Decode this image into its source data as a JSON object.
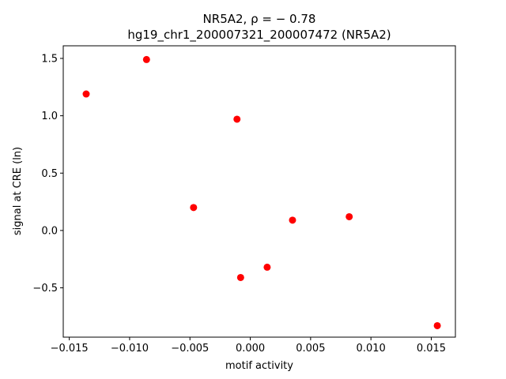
{
  "chart_data": {
    "type": "scatter",
    "title_line1": "NR5A2, ρ = − 0.78",
    "title_line2": "hg19_chr1_200007321_200007472 (NR5A2)",
    "xlabel": "motif activity",
    "ylabel": "signal at CRE (ln)",
    "xlim": [
      -0.0155,
      0.017
    ],
    "ylim": [
      -0.93,
      1.61
    ],
    "xticks": [
      -0.015,
      -0.01,
      -0.005,
      0.0,
      0.005,
      0.01,
      0.015
    ],
    "xtick_labels": [
      "−0.015",
      "−0.010",
      "−0.005",
      "0.000",
      "0.005",
      "0.010",
      "0.015"
    ],
    "yticks": [
      -0.5,
      0.0,
      0.5,
      1.0,
      1.5
    ],
    "ytick_labels": [
      "−0.5",
      "0.0",
      "0.5",
      "1.0",
      "1.5"
    ],
    "point_color": "#ff0000",
    "grid": false,
    "points": [
      {
        "x": -0.0136,
        "y": 1.19
      },
      {
        "x": -0.0086,
        "y": 1.49
      },
      {
        "x": -0.0047,
        "y": 0.2
      },
      {
        "x": -0.0011,
        "y": 0.97
      },
      {
        "x": -0.0008,
        "y": -0.41
      },
      {
        "x": 0.0014,
        "y": -0.32
      },
      {
        "x": 0.0035,
        "y": 0.09
      },
      {
        "x": 0.0082,
        "y": 0.12
      },
      {
        "x": 0.0155,
        "y": -0.83
      }
    ]
  }
}
